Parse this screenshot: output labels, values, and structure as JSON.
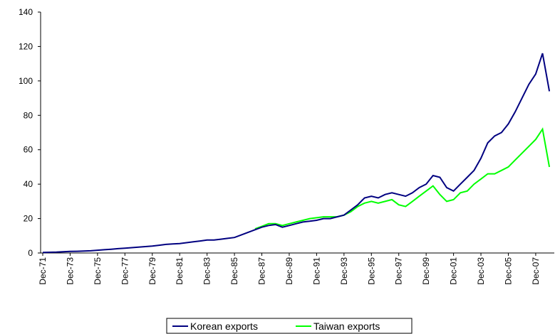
{
  "chart_data": {
    "type": "line",
    "categories": [
      "Dec-71",
      null,
      null,
      null,
      "Dec-73",
      null,
      null,
      null,
      "Dec-75",
      null,
      null,
      null,
      "Dec-77",
      null,
      null,
      null,
      "Dec-79",
      null,
      null,
      null,
      "Dec-81",
      null,
      null,
      null,
      "Dec-83",
      null,
      null,
      null,
      "Dec-85",
      null,
      null,
      null,
      "Dec-87",
      null,
      null,
      null,
      "Dec-89",
      null,
      null,
      null,
      "Dec-91",
      null,
      null,
      null,
      "Dec-93",
      null,
      null,
      null,
      "Dec-95",
      null,
      null,
      null,
      "Dec-97",
      null,
      null,
      null,
      "Dec-99",
      null,
      null,
      null,
      "Dec-01",
      null,
      null,
      null,
      "Dec-03",
      null,
      null,
      null,
      "Dec-05",
      null,
      null,
      null,
      "Dec-07",
      null,
      null
    ],
    "series": [
      {
        "name": "Korean exports",
        "color": "#000080",
        "values": [
          0.3,
          0.4,
          0.5,
          0.7,
          0.9,
          1.0,
          1.1,
          1.3,
          1.6,
          1.9,
          2.2,
          2.5,
          2.8,
          3.1,
          3.4,
          3.7,
          4.0,
          4.5,
          5.0,
          5.3,
          5.5,
          6.0,
          6.5,
          7.0,
          7.5,
          7.5,
          8.0,
          8.5,
          9.0,
          10.5,
          12,
          13.5,
          15,
          16,
          16.5,
          15,
          16,
          17,
          18,
          18.5,
          19,
          20,
          20,
          21,
          22,
          25,
          28,
          32,
          33,
          32,
          34,
          35,
          34,
          33,
          35,
          38,
          40,
          45,
          44,
          38,
          36,
          40,
          44,
          48,
          55,
          64,
          68,
          70,
          75,
          82,
          90,
          98,
          104,
          116,
          94
        ]
      },
      {
        "name": "Taiwan exports",
        "color": "#00ff00",
        "values": [
          null,
          null,
          null,
          null,
          null,
          null,
          null,
          null,
          null,
          null,
          null,
          null,
          null,
          null,
          null,
          null,
          null,
          null,
          null,
          null,
          null,
          null,
          null,
          null,
          null,
          null,
          null,
          null,
          null,
          null,
          null,
          14,
          15.5,
          17,
          17,
          16,
          17,
          18,
          19,
          20,
          20.5,
          21,
          21,
          21,
          22,
          24,
          27,
          29,
          30,
          29,
          30,
          31,
          28,
          27,
          30,
          33,
          36,
          39,
          34,
          30,
          31,
          35,
          36,
          40,
          43,
          46,
          46,
          48,
          50,
          54,
          58,
          62,
          66,
          72,
          50
        ]
      }
    ],
    "ylim": [
      0,
      140
    ],
    "yticks": [
      0,
      20,
      40,
      60,
      80,
      100,
      120,
      140
    ]
  }
}
